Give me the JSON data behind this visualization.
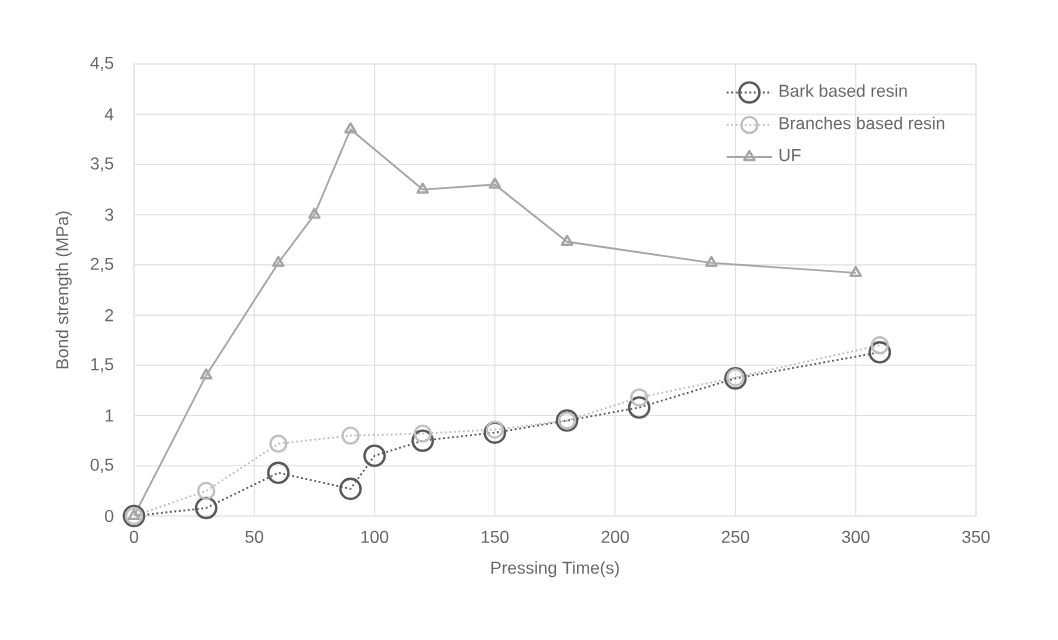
{
  "chart_data": {
    "type": "line",
    "xlabel": "Pressing Time(s)",
    "ylabel": "Bond strength (MPa)",
    "xlim": [
      0,
      350
    ],
    "xticks": [
      0,
      50,
      100,
      150,
      200,
      250,
      300,
      350
    ],
    "ylim": [
      0,
      4.5
    ],
    "yticks": [
      0,
      {
        "value": 0.5,
        "label": "0,5"
      },
      1,
      {
        "value": 1.5,
        "label": "1,5"
      },
      2,
      {
        "value": 2.5,
        "label": "2,5"
      },
      3,
      {
        "value": 3.5,
        "label": "3,5"
      },
      4,
      {
        "value": 4.5,
        "label": "4,5"
      }
    ],
    "grid": true,
    "legend": "top right",
    "line_style": "dotted",
    "series": [
      {
        "name": "Bark based resin",
        "color": "#595959",
        "marker": "circle",
        "x": [
          0,
          30,
          60,
          90,
          100,
          120,
          150,
          180,
          210,
          250,
          310
        ],
        "values": [
          0,
          0.08,
          0.43,
          0.27,
          0.6,
          0.75,
          0.83,
          0.95,
          1.08,
          1.37,
          1.63
        ]
      },
      {
        "name": "Branches based resin",
        "color": "#bfbfbf",
        "marker": "circle",
        "x": [
          0,
          30,
          60,
          90,
          120,
          150,
          180,
          210,
          250,
          310
        ],
        "values": [
          0,
          0.25,
          0.72,
          0.8,
          0.82,
          0.86,
          0.95,
          1.18,
          1.38,
          1.7
        ]
      },
      {
        "name": "UF",
        "color": "#a6a6a6",
        "marker": "triangle",
        "line_style": "solid",
        "x": [
          0,
          30,
          60,
          75,
          90,
          120,
          150,
          180,
          240,
          300
        ],
        "values": [
          0,
          1.4,
          2.52,
          3.0,
          3.85,
          3.25,
          3.3,
          2.73,
          2.52,
          2.42
        ]
      }
    ]
  }
}
